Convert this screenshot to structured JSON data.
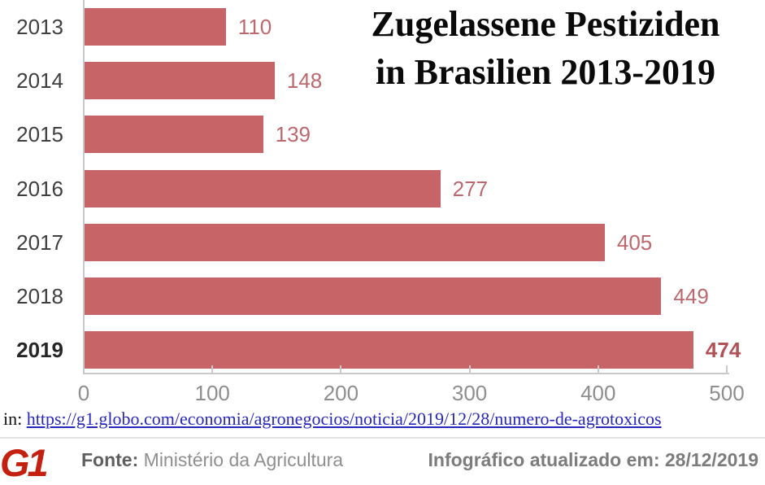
{
  "title": {
    "line1": "Zugelassene Pestiziden",
    "line2": "in Brasilien 2013-2019"
  },
  "chart_data": {
    "type": "bar",
    "orientation": "horizontal",
    "title": "Zugelassene Pestiziden in Brasilien 2013-2019",
    "categories": [
      "2013",
      "2014",
      "2015",
      "2016",
      "2017",
      "2018",
      "2019"
    ],
    "values": [
      110,
      148,
      139,
      277,
      405,
      449,
      474
    ],
    "highlight_index": 6,
    "xlim": [
      0,
      500
    ],
    "x_ticks": [
      0,
      100,
      200,
      300,
      400,
      500
    ],
    "grid": false,
    "legend": "none",
    "bar_color": "#c76468",
    "value_label_color": "#bd686d",
    "value_label_highlight_color": "#b05258",
    "category_label_color": "#3f3f3f",
    "category_label_highlight_color": "#262626",
    "tick_label_color": "#8e8e8e",
    "axis_color": "#c9c9c9"
  },
  "source_line": {
    "prefix": "in:",
    "url": "https://g1.globo.com/economia/agronegocios/noticia/2019/12/28/numero-de-agrotoxicos",
    "link_color": "#2727bd"
  },
  "footer": {
    "logo_text": "G1",
    "logo_color": "#c4200f",
    "fonte_label": "Fonte:",
    "fonte_value": "Ministério da Agricultura",
    "updated_text": "Infográfico atualizado em: 28/12/2019"
  }
}
